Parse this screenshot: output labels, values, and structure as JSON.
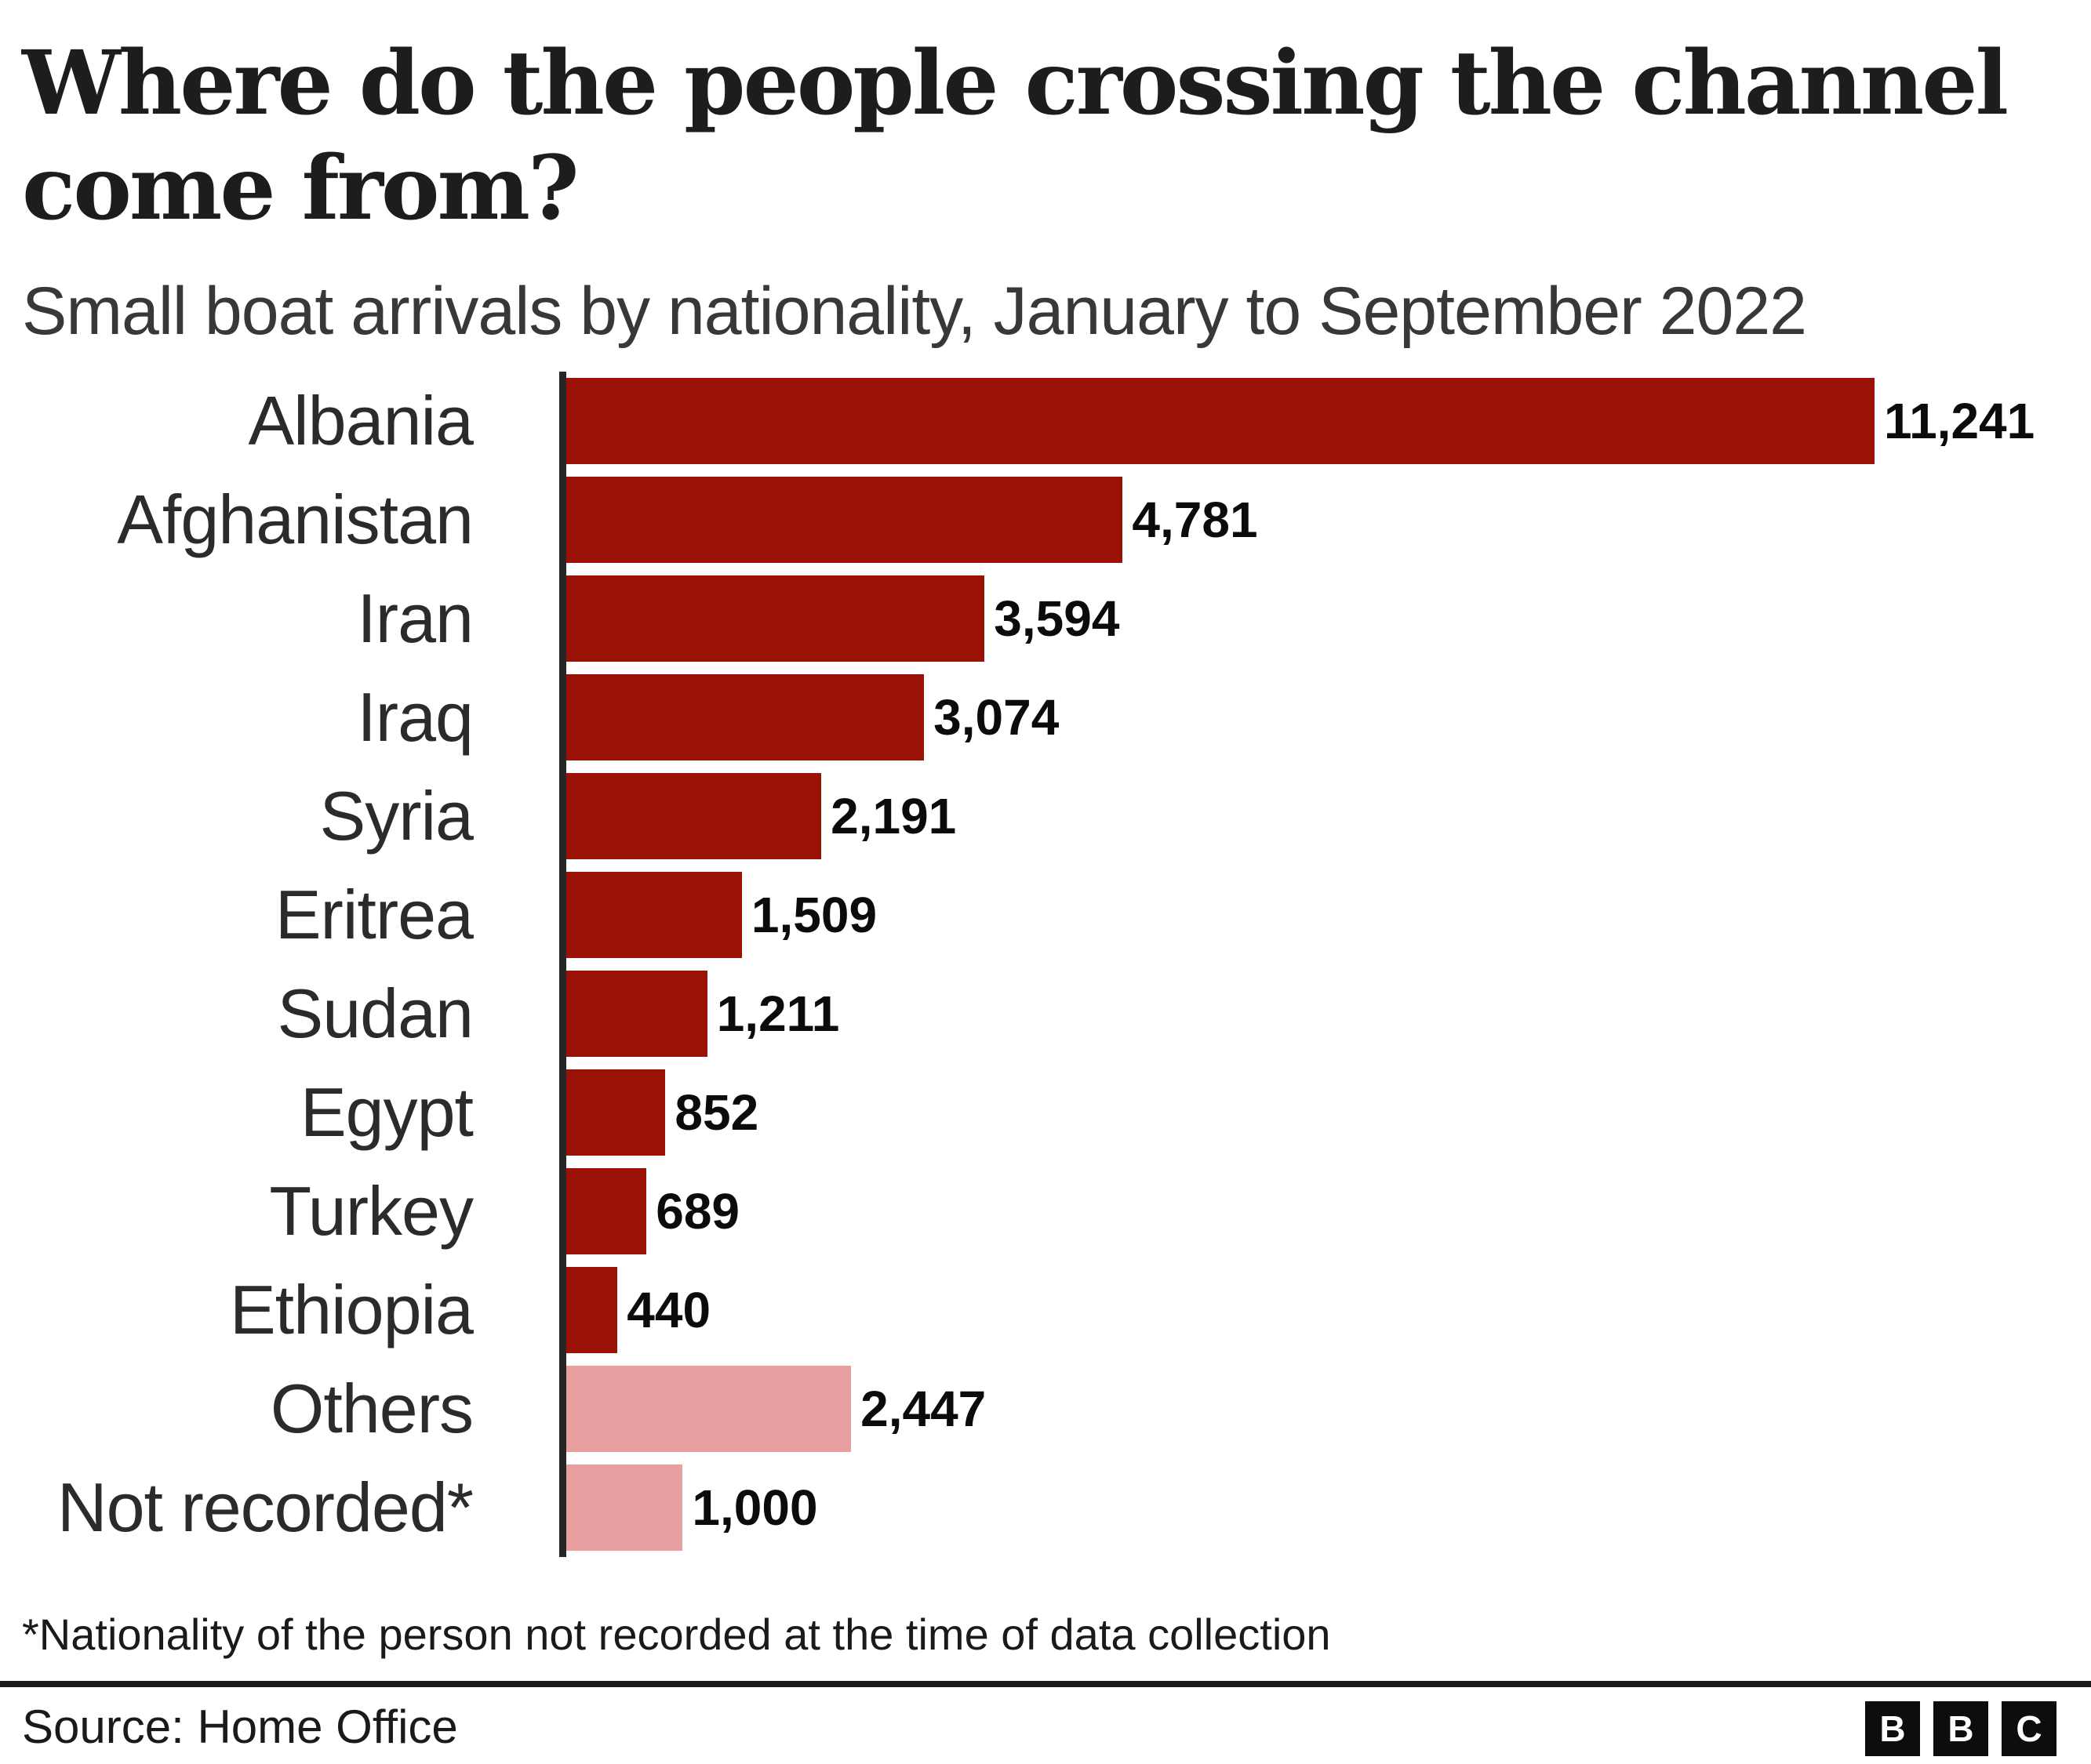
{
  "header": {
    "title_lines": [
      "Where do the people crossing the channel",
      "come from?"
    ],
    "subtitle": "Small boat arrivals by nationality, January to September 2022"
  },
  "chart_data": {
    "type": "bar",
    "orientation": "horizontal",
    "title": "Where do the people crossing the channel come from?",
    "subtitle": "Small boat arrivals by nationality, January to September 2022",
    "categories": [
      "Albania",
      "Afghanistan",
      "Iran",
      "Iraq",
      "Syria",
      "Eritrea",
      "Sudan",
      "Egypt",
      "Turkey",
      "Ethiopia",
      "Others",
      "Not recorded*"
    ],
    "values": [
      11241,
      4781,
      3594,
      3074,
      2191,
      1509,
      1211,
      852,
      689,
      440,
      2447,
      1000
    ],
    "value_labels": [
      "11,241",
      "4,781",
      "3,594",
      "3,074",
      "2,191",
      "1,509",
      "1,211",
      "852",
      "689",
      "440",
      "2,447",
      "1,000"
    ],
    "xlim": [
      0,
      11241
    ],
    "bar_color": "#9a1206",
    "muted_bar_color": "#e89f9f",
    "muted_categories": [
      "Others",
      "Not recorded*"
    ],
    "axis_color": "#262626",
    "grid": "off",
    "legend": "none"
  },
  "footnote": "*Nationality of the person not recorded at the time of data collection",
  "footer": {
    "source": "Source: Home Office",
    "logo_letters": [
      "B",
      "B",
      "C"
    ]
  }
}
